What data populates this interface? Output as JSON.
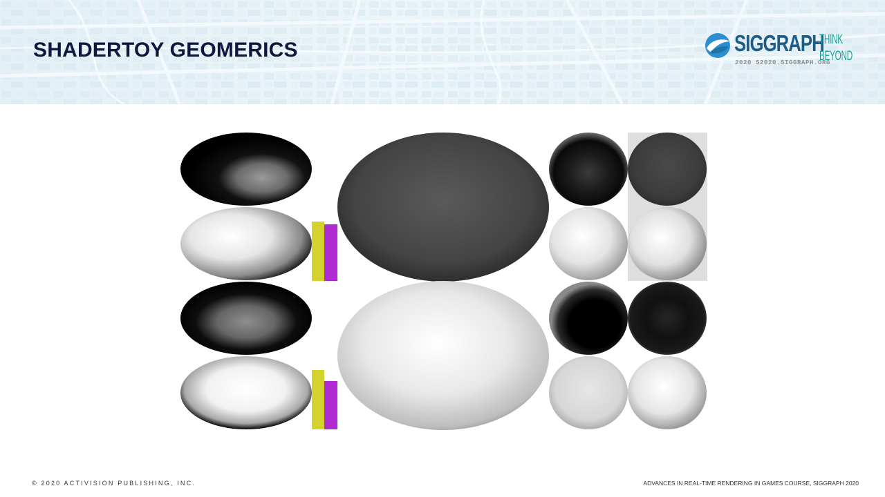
{
  "slide": {
    "title": "SHADERTOY GEOMERICS"
  },
  "logo": {
    "wordmark": "SIGGRAPH",
    "subline": "2020  S2020.SIGGRAPH.ORG",
    "tagline_top": "THINK",
    "tagline_bottom": "BEYOND"
  },
  "footer": {
    "copyright": "© 2020 ACTIVISION PUBLISHING, INC.",
    "course": "ADVANCES IN REAL-TIME RENDERING IN GAMES COURSE, SIGGRAPH 2020"
  },
  "colors": {
    "title": "#10183d",
    "logo_blue": "#1f5d86",
    "logo_teal": "#1aa39b",
    "bar_yellow": "#d4d22e",
    "bar_magenta": "#b02bd2",
    "panel_gray": "#dedede"
  },
  "figure": {
    "description_icon": "shaded-ellipsoid-grid",
    "bars": [
      {
        "row": "top",
        "yellow_level": 0.81,
        "magenta_level": 0.77
      },
      {
        "row": "bottom",
        "yellow_level": 0.81,
        "magenta_level": 0.66
      }
    ]
  }
}
